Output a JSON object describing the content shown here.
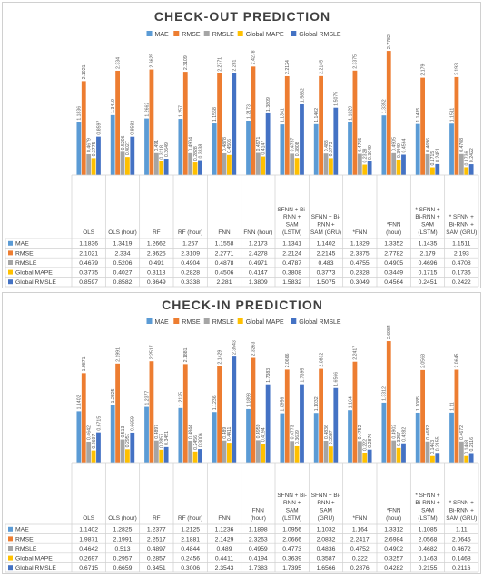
{
  "chart_data": [
    {
      "type": "bar",
      "title": "CHECK-OUT PREDICTION",
      "legend_position": "top",
      "categories": [
        [
          "OLS"
        ],
        [
          "OLS (hour)"
        ],
        [
          "RF"
        ],
        [
          "RF (hour)"
        ],
        [
          "FNN"
        ],
        [
          "FNN (hour)"
        ],
        [
          "SFNN + Bi-",
          "RNN +",
          "SAM",
          "(LSTM)"
        ],
        [
          "SFNN + Bi-",
          "RNN +",
          "SAM (GRU)"
        ],
        [
          "*FNN"
        ],
        [
          "*FNN",
          "(hour)"
        ],
        [
          "* SFNN +",
          "Bi-RNN +",
          "SAM",
          "(LSTM)"
        ],
        [
          "* SFNN +",
          "Bi-RNN +",
          "SAM (GRU)"
        ]
      ],
      "ylim": [
        0,
        2.8
      ],
      "series": [
        {
          "name": "MAE",
          "color": "#5b9bd5",
          "values": [
            1.1836,
            1.3419,
            1.2662,
            1.257,
            1.1558,
            1.2173,
            1.1341,
            1.1402,
            1.1829,
            1.3352,
            1.1435,
            1.1511
          ]
        },
        {
          "name": "RMSE",
          "color": "#ed7d31",
          "values": [
            2.1021,
            2.334,
            2.3625,
            2.3109,
            2.2771,
            2.4278,
            2.2124,
            2.2145,
            2.3375,
            2.7782,
            2.179,
            2.193
          ]
        },
        {
          "name": "RMSLE",
          "color": "#a5a5a5",
          "values": [
            0.4679,
            0.5206,
            0.491,
            0.4904,
            0.4878,
            0.4971,
            0.4787,
            0.483,
            0.4755,
            0.4905,
            0.4696,
            0.4708
          ]
        },
        {
          "name": "Global MAPE",
          "color": "#ffc000",
          "values": [
            0.3775,
            0.4027,
            0.3118,
            0.2828,
            0.4506,
            0.4147,
            0.3808,
            0.3773,
            0.2328,
            0.3449,
            0.1715,
            0.1736
          ]
        },
        {
          "name": "Global RMSLE",
          "color": "#4472c4",
          "values": [
            0.8597,
            0.8582,
            0.3649,
            0.3338,
            2.281,
            1.3809,
            1.5832,
            1.5075,
            0.3049,
            0.4564,
            0.2451,
            0.2422
          ]
        }
      ]
    },
    {
      "type": "bar",
      "title": "CHECK-IN PREDICTION",
      "legend_position": "top",
      "categories": [
        [
          "OLS"
        ],
        [
          "OLS (hour)"
        ],
        [
          "RF"
        ],
        [
          "RF (hour)"
        ],
        [
          "FNN"
        ],
        [
          "FNN",
          "(hour)"
        ],
        [
          "SFNN + Bi-",
          "RNN +",
          "SAM",
          "(LSTM)"
        ],
        [
          "SFNN + Bi-",
          "RNN +",
          "SAM",
          "(GRU)"
        ],
        [
          "*FNN"
        ],
        [
          "*FNN",
          "(hour)"
        ],
        [
          "* SFNN +",
          "Bi-RNN +",
          "SAM",
          "(LSTM)"
        ],
        [
          "* SFNN +",
          "Bi-RNN +",
          "SAM (GRU)"
        ]
      ],
      "ylim": [
        0,
        2.8
      ],
      "series": [
        {
          "name": "MAE",
          "color": "#5b9bd5",
          "values": [
            1.1402,
            1.2825,
            1.2377,
            1.2125,
            1.1236,
            1.1898,
            1.0956,
            1.1032,
            1.164,
            1.3312,
            1.1085,
            1.11
          ]
        },
        {
          "name": "RMSE",
          "color": "#ed7d31",
          "values": [
            1.9871,
            2.1991,
            2.2517,
            2.1881,
            2.1429,
            2.3263,
            2.0666,
            2.0832,
            2.2417,
            2.6984,
            2.0568,
            2.0645
          ]
        },
        {
          "name": "RMSLE",
          "color": "#a5a5a5",
          "values": [
            0.4642,
            0.513,
            0.4897,
            0.4844,
            0.489,
            0.4959,
            0.4773,
            0.4836,
            0.4752,
            0.4902,
            0.4682,
            0.4672
          ]
        },
        {
          "name": "Global MAPE",
          "color": "#ffc000",
          "values": [
            0.2697,
            0.2957,
            0.2857,
            0.2456,
            0.4411,
            0.4194,
            0.3639,
            0.3587,
            0.222,
            0.3257,
            0.1463,
            0.1468
          ]
        },
        {
          "name": "Global RMSLE",
          "color": "#4472c4",
          "values": [
            0.6715,
            0.6659,
            0.3451,
            0.3006,
            2.3543,
            1.7383,
            1.7395,
            1.6566,
            0.2876,
            0.4282,
            0.2155,
            0.2116
          ]
        }
      ]
    }
  ]
}
